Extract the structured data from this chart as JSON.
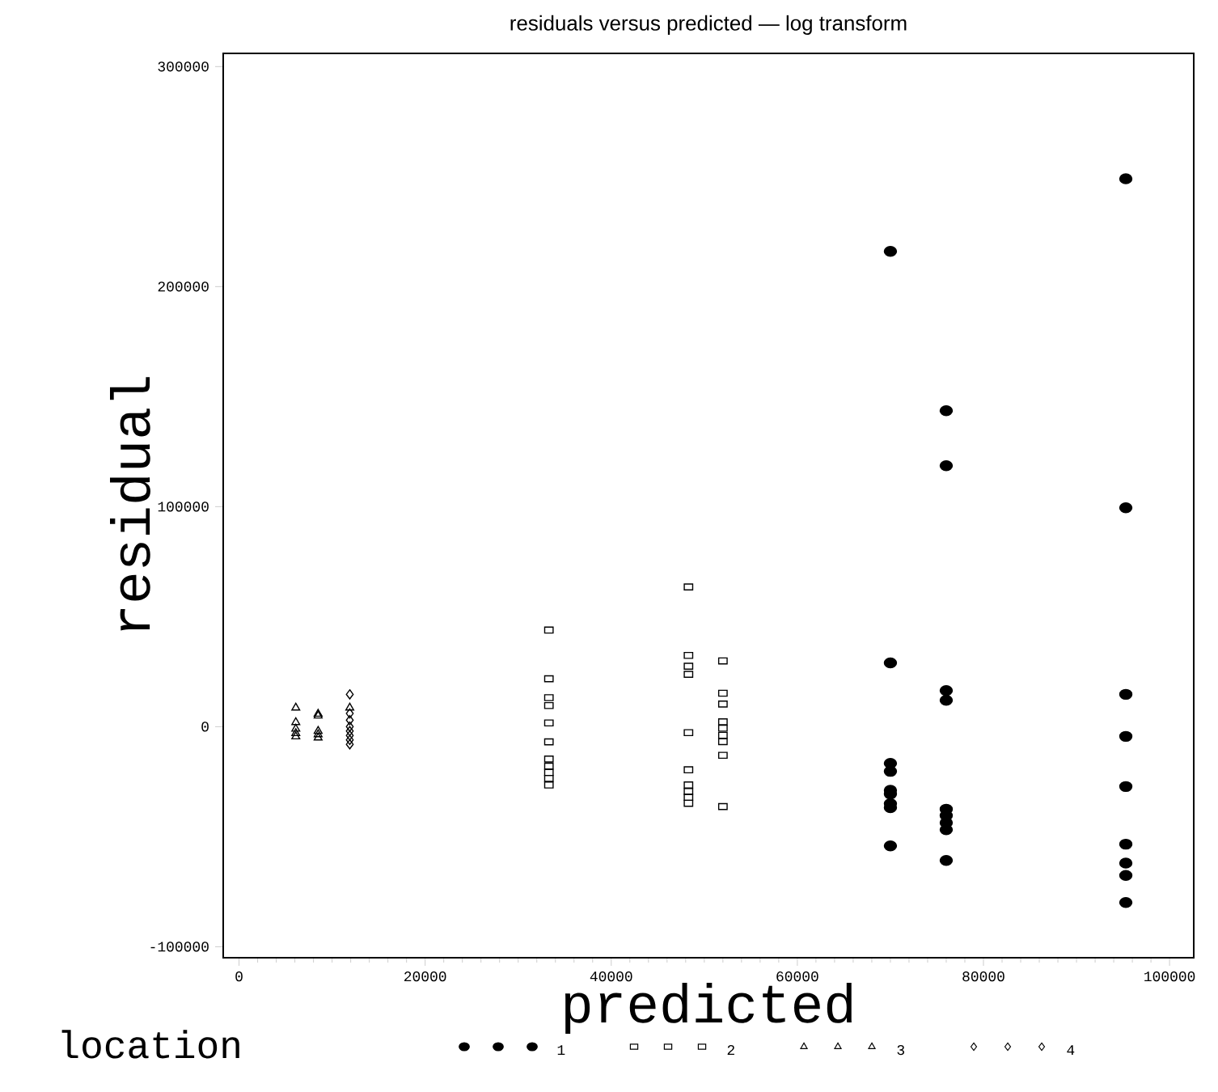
{
  "chart_data": {
    "type": "scatter",
    "title": "residuals versus predicted — log transform",
    "xlabel": "predicted",
    "ylabel": "residual",
    "legend_title": "location",
    "legend": "bottom",
    "grid": false,
    "xlim": [
      -1700,
      102600
    ],
    "ylim": [
      -105000,
      306000
    ],
    "xticks": [
      0,
      20000,
      40000,
      60000,
      80000,
      100000
    ],
    "yticks": [
      -100000,
      0,
      100000,
      200000,
      300000
    ],
    "series": [
      {
        "name": "1",
        "color": "#000000",
        "marker": "circle",
        "x": [
          70000,
          70000,
          70000,
          70000,
          70000,
          70000,
          70000,
          70000,
          70000,
          76000,
          76000,
          76000,
          76000,
          76000,
          76000,
          76000,
          76000,
          76000,
          95300,
          95300,
          95300,
          95300,
          95300,
          95300,
          95300,
          95300,
          95300
        ],
        "values": [
          216000,
          29000,
          -16700,
          -20300,
          -28900,
          -30600,
          -35000,
          -36800,
          -54200,
          143600,
          118600,
          16400,
          12000,
          -37500,
          -40400,
          -43600,
          -46800,
          -60800,
          249000,
          99500,
          14700,
          -4400,
          -27200,
          -53400,
          -62000,
          -67600,
          -79900
        ]
      },
      {
        "name": "2",
        "color": "#000000",
        "marker": "square",
        "x": [
          33300,
          33300,
          33300,
          33300,
          33300,
          33300,
          33300,
          33300,
          33300,
          33300,
          33300,
          48300,
          48300,
          48300,
          48300,
          48300,
          48300,
          48300,
          48300,
          48300,
          48300,
          52000,
          52000,
          52000,
          52000,
          52000,
          52000,
          52000,
          52000,
          52000
        ],
        "values": [
          43900,
          21800,
          13200,
          9600,
          1700,
          -6900,
          -14700,
          -17900,
          -20800,
          -23500,
          -26500,
          63500,
          32400,
          27500,
          23800,
          -2700,
          -19600,
          -26500,
          -29400,
          -32100,
          -34800,
          29900,
          15200,
          10300,
          2200,
          -700,
          -3900,
          -6800,
          -13000,
          -36300
        ]
      },
      {
        "name": "3",
        "color": "#000000",
        "marker": "triangle",
        "x": [
          6100,
          6100,
          6100,
          6100,
          6100,
          8500,
          8500,
          8500,
          8500,
          8500,
          11900
        ],
        "values": [
          8600,
          2000,
          -1000,
          -3000,
          -4500,
          5800,
          5000,
          -2000,
          -3500,
          -5000,
          8600
        ]
      },
      {
        "name": "4",
        "color": "#000000",
        "marker": "diamond",
        "x": [
          11900,
          11900,
          11900,
          11900,
          11900,
          11900,
          11900,
          11900
        ],
        "values": [
          14700,
          6000,
          3000,
          0,
          -2000,
          -4000,
          -6000,
          -8000
        ]
      }
    ]
  }
}
